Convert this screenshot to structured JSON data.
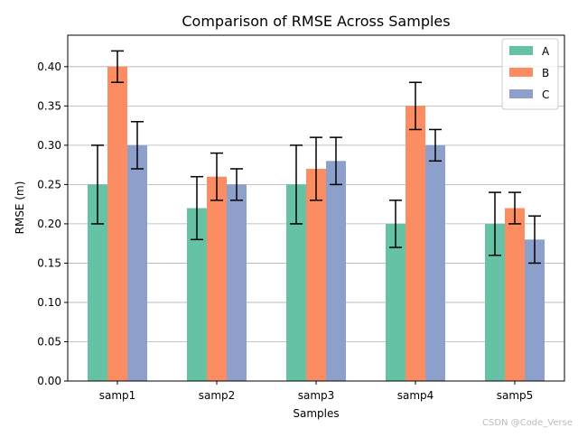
{
  "chart_data": {
    "type": "bar",
    "title": "Comparison of RMSE Across Samples",
    "xlabel": "Samples",
    "ylabel": "RMSE (m)",
    "categories": [
      "samp1",
      "samp2",
      "samp3",
      "samp4",
      "samp5"
    ],
    "ylim": [
      0,
      0.44
    ],
    "yticks": [
      "0.00",
      "0.05",
      "0.10",
      "0.15",
      "0.20",
      "0.25",
      "0.30",
      "0.35",
      "0.40"
    ],
    "ytick_values": [
      0,
      0.05,
      0.1,
      0.15,
      0.2,
      0.25,
      0.3,
      0.35,
      0.4
    ],
    "grid": "y",
    "legend_position": "top-right",
    "series": [
      {
        "name": "A",
        "color": "#66c2a5",
        "values": [
          0.25,
          0.22,
          0.25,
          0.2,
          0.2
        ],
        "errors": [
          0.05,
          0.04,
          0.05,
          0.03,
          0.04
        ]
      },
      {
        "name": "B",
        "color": "#fc8d62",
        "values": [
          0.4,
          0.26,
          0.27,
          0.35,
          0.22
        ],
        "errors": [
          0.02,
          0.03,
          0.04,
          0.03,
          0.02
        ]
      },
      {
        "name": "C",
        "color": "#8da0cb",
        "values": [
          0.3,
          0.25,
          0.28,
          0.3,
          0.18
        ],
        "errors": [
          0.03,
          0.02,
          0.03,
          0.02,
          0.03
        ]
      }
    ]
  },
  "watermark": "CSDN @Code_Verse"
}
